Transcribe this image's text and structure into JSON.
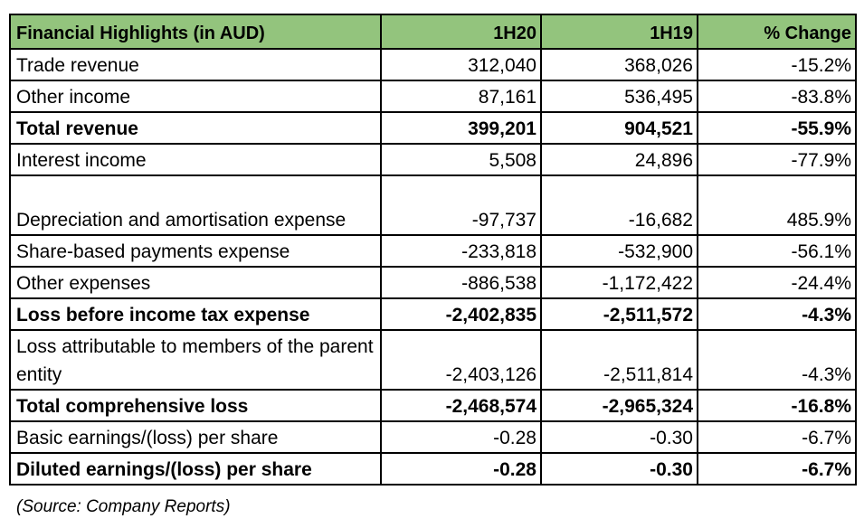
{
  "table": {
    "headers": [
      "Financial Highlights (in AUD)",
      "1H20",
      "1H19",
      "% Change"
    ],
    "header_color": "#93c47d",
    "rows": [
      {
        "label": "Trade revenue",
        "h20": "312,040",
        "h19": "368,026",
        "change": "-15.2%",
        "bold": false
      },
      {
        "label": "Other income",
        "h20": "87,161",
        "h19": "536,495",
        "change": "-83.8%",
        "bold": false
      },
      {
        "label": "Total revenue",
        "h20": "399,201",
        "h19": "904,521",
        "change": "-55.9%",
        "bold": true
      },
      {
        "label": "Interest income",
        "h20": "5,508",
        "h19": "24,896",
        "change": "-77.9%",
        "bold": false
      },
      {
        "label": "Depreciation and amortisation expense",
        "h20": "-97,737",
        "h19": "-16,682",
        "change": "485.9%",
        "bold": false
      },
      {
        "label": "Share-based payments expense",
        "h20": "-233,818",
        "h19": "-532,900",
        "change": "-56.1%",
        "bold": false
      },
      {
        "label": "Other expenses",
        "h20": "-886,538",
        "h19": "-1,172,422",
        "change": "-24.4%",
        "bold": false
      },
      {
        "label": "Loss before income tax expense",
        "h20": "-2,402,835",
        "h19": "-2,511,572",
        "change": "-4.3%",
        "bold": true
      },
      {
        "label": "Loss attributable to members of the parent entity",
        "h20": "-2,403,126",
        "h19": "-2,511,814",
        "change": "-4.3%",
        "bold": false
      },
      {
        "label": "Total comprehensive loss",
        "h20": "-2,468,574",
        "h19": "-2,965,324",
        "change": "-16.8%",
        "bold": true
      },
      {
        "label": "Basic earnings/(loss) per share",
        "h20": "-0.28",
        "h19": "-0.30",
        "change": "-6.7%",
        "bold": false
      },
      {
        "label": "Diluted earnings/(loss) per share",
        "h20": "-0.28",
        "h19": "-0.30",
        "change": "-6.7%",
        "bold": true
      }
    ]
  },
  "source": "(Source: Company Reports)"
}
